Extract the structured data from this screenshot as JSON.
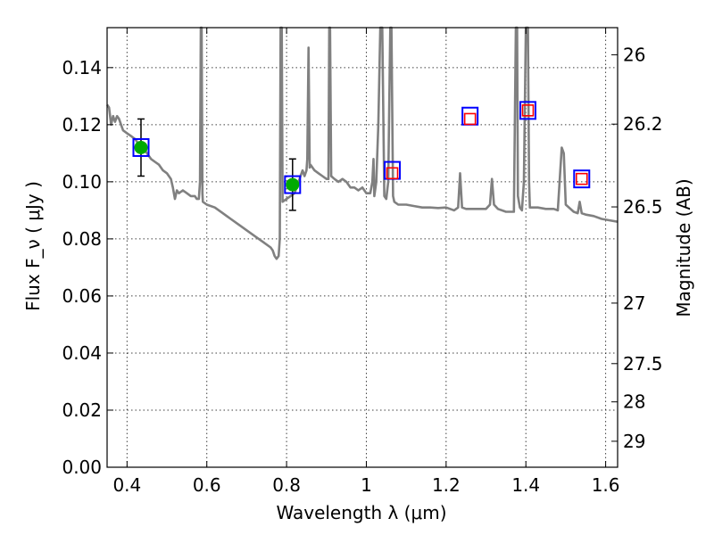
{
  "chart_data": {
    "type": "scatter",
    "title": "",
    "xlabel": "Wavelength  λ (μm)",
    "ylabel": "Flux  F_ν  ( μJy )",
    "y2label": "Magnitude (AB)",
    "xlim": [
      0.35,
      1.63
    ],
    "ylim": [
      0.0,
      0.154
    ],
    "grid": true,
    "x_ticks": [
      0.4,
      0.6,
      0.8,
      1.0,
      1.2,
      1.4,
      1.6
    ],
    "x_tick_labels": [
      "0.4",
      "0.6",
      "0.8",
      "1",
      "1.2",
      "1.4",
      "1.6"
    ],
    "y_ticks": [
      0.0,
      0.02,
      0.04,
      0.06,
      0.08,
      0.1,
      0.12,
      0.14
    ],
    "y_tick_labels": [
      "0.00",
      "0.02",
      "0.04",
      "0.06",
      "0.08",
      "0.10",
      "0.12",
      "0.14"
    ],
    "y2_ticks": [
      {
        "label": "26",
        "flux": 0.1445
      },
      {
        "label": "26.2",
        "flux": 0.1202
      },
      {
        "label": "26.5",
        "flux": 0.0912
      },
      {
        "label": "27",
        "flux": 0.0575
      },
      {
        "label": "27.5",
        "flux": 0.0363
      },
      {
        "label": "28",
        "flux": 0.0229
      },
      {
        "label": "29",
        "flux": 0.0091
      }
    ],
    "series": [
      {
        "kind": "line",
        "color": "#808080",
        "points": [
          [
            0.35,
            0.127
          ],
          [
            0.355,
            0.126
          ],
          [
            0.36,
            0.12
          ],
          [
            0.365,
            0.123
          ],
          [
            0.37,
            0.121
          ],
          [
            0.375,
            0.123
          ],
          [
            0.38,
            0.122
          ],
          [
            0.39,
            0.118
          ],
          [
            0.4,
            0.117
          ],
          [
            0.41,
            0.116
          ],
          [
            0.42,
            0.115
          ],
          [
            0.43,
            0.113
          ],
          [
            0.44,
            0.112
          ],
          [
            0.45,
            0.11
          ],
          [
            0.46,
            0.108
          ],
          [
            0.47,
            0.107
          ],
          [
            0.48,
            0.106
          ],
          [
            0.49,
            0.104
          ],
          [
            0.5,
            0.103
          ],
          [
            0.51,
            0.101
          ],
          [
            0.515,
            0.098
          ],
          [
            0.52,
            0.094
          ],
          [
            0.525,
            0.097
          ],
          [
            0.53,
            0.096
          ],
          [
            0.54,
            0.097
          ],
          [
            0.55,
            0.096
          ],
          [
            0.56,
            0.095
          ],
          [
            0.57,
            0.095
          ],
          [
            0.575,
            0.094
          ],
          [
            0.58,
            0.094
          ],
          [
            0.583,
            0.1
          ],
          [
            0.585,
            0.154
          ],
          [
            0.587,
            0.154
          ],
          [
            0.589,
            0.096
          ],
          [
            0.59,
            0.093
          ],
          [
            0.6,
            0.092
          ],
          [
            0.62,
            0.091
          ],
          [
            0.64,
            0.089
          ],
          [
            0.66,
            0.087
          ],
          [
            0.68,
            0.085
          ],
          [
            0.7,
            0.083
          ],
          [
            0.72,
            0.081
          ],
          [
            0.74,
            0.079
          ],
          [
            0.76,
            0.077
          ],
          [
            0.765,
            0.076
          ],
          [
            0.77,
            0.074
          ],
          [
            0.775,
            0.073
          ],
          [
            0.78,
            0.074
          ],
          [
            0.783,
            0.08
          ],
          [
            0.785,
            0.154
          ],
          [
            0.788,
            0.154
          ],
          [
            0.79,
            0.093
          ],
          [
            0.8,
            0.094
          ],
          [
            0.81,
            0.095
          ],
          [
            0.82,
            0.096
          ],
          [
            0.825,
            0.098
          ],
          [
            0.83,
            0.1
          ],
          [
            0.835,
            0.102
          ],
          [
            0.84,
            0.104
          ],
          [
            0.845,
            0.102
          ],
          [
            0.85,
            0.104
          ],
          [
            0.852,
            0.108
          ],
          [
            0.855,
            0.147
          ],
          [
            0.858,
            0.105
          ],
          [
            0.86,
            0.106
          ],
          [
            0.87,
            0.104
          ],
          [
            0.88,
            0.103
          ],
          [
            0.89,
            0.102
          ],
          [
            0.9,
            0.101
          ],
          [
            0.905,
            0.101
          ],
          [
            0.907,
            0.154
          ],
          [
            0.909,
            0.154
          ],
          [
            0.912,
            0.102
          ],
          [
            0.92,
            0.101
          ],
          [
            0.93,
            0.1
          ],
          [
            0.94,
            0.101
          ],
          [
            0.95,
            0.1
          ],
          [
            0.96,
            0.098
          ],
          [
            0.97,
            0.098
          ],
          [
            0.98,
            0.097
          ],
          [
            0.99,
            0.098
          ],
          [
            1.0,
            0.096
          ],
          [
            1.01,
            0.096
          ],
          [
            1.015,
            0.1
          ],
          [
            1.018,
            0.108
          ],
          [
            1.02,
            0.095
          ],
          [
            1.025,
            0.1
          ],
          [
            1.03,
            0.12
          ],
          [
            1.035,
            0.154
          ],
          [
            1.04,
            0.154
          ],
          [
            1.045,
            0.095
          ],
          [
            1.05,
            0.094
          ],
          [
            1.055,
            0.1
          ],
          [
            1.06,
            0.154
          ],
          [
            1.063,
            0.154
          ],
          [
            1.067,
            0.095
          ],
          [
            1.07,
            0.093
          ],
          [
            1.08,
            0.092
          ],
          [
            1.1,
            0.092
          ],
          [
            1.12,
            0.0915
          ],
          [
            1.14,
            0.091
          ],
          [
            1.16,
            0.091
          ],
          [
            1.18,
            0.0908
          ],
          [
            1.2,
            0.091
          ],
          [
            1.22,
            0.09
          ],
          [
            1.23,
            0.091
          ],
          [
            1.235,
            0.103
          ],
          [
            1.24,
            0.091
          ],
          [
            1.25,
            0.0905
          ],
          [
            1.27,
            0.0905
          ],
          [
            1.29,
            0.0905
          ],
          [
            1.3,
            0.0905
          ],
          [
            1.31,
            0.092
          ],
          [
            1.315,
            0.101
          ],
          [
            1.32,
            0.092
          ],
          [
            1.33,
            0.0905
          ],
          [
            1.35,
            0.0895
          ],
          [
            1.37,
            0.0895
          ],
          [
            1.375,
            0.154
          ],
          [
            1.378,
            0.154
          ],
          [
            1.38,
            0.095
          ],
          [
            1.385,
            0.091
          ],
          [
            1.39,
            0.09
          ],
          [
            1.395,
            0.1
          ],
          [
            1.4,
            0.154
          ],
          [
            1.402,
            0.154
          ],
          [
            1.405,
            0.154
          ],
          [
            1.408,
            0.1
          ],
          [
            1.41,
            0.091
          ],
          [
            1.43,
            0.091
          ],
          [
            1.45,
            0.0905
          ],
          [
            1.47,
            0.0905
          ],
          [
            1.48,
            0.09
          ],
          [
            1.49,
            0.112
          ],
          [
            1.495,
            0.11
          ],
          [
            1.5,
            0.092
          ],
          [
            1.52,
            0.0895
          ],
          [
            1.53,
            0.089
          ],
          [
            1.535,
            0.093
          ],
          [
            1.54,
            0.089
          ],
          [
            1.55,
            0.0885
          ],
          [
            1.57,
            0.088
          ],
          [
            1.59,
            0.087
          ],
          [
            1.61,
            0.0865
          ],
          [
            1.63,
            0.086
          ]
        ]
      },
      {
        "kind": "markers-filled",
        "color": "#00aa00",
        "points": [
          {
            "x": 0.435,
            "y": 0.112,
            "err": 0.01
          },
          {
            "x": 0.815,
            "y": 0.099,
            "err": 0.009
          }
        ]
      },
      {
        "kind": "markers-square-blue",
        "color": "#0000ff",
        "points": [
          {
            "x": 0.435,
            "y": 0.112
          },
          {
            "x": 0.815,
            "y": 0.099
          },
          {
            "x": 1.065,
            "y": 0.104
          },
          {
            "x": 1.26,
            "y": 0.123
          },
          {
            "x": 1.405,
            "y": 0.125
          },
          {
            "x": 1.54,
            "y": 0.101
          }
        ]
      },
      {
        "kind": "markers-square-red",
        "color": "#ff0000",
        "points": [
          {
            "x": 1.065,
            "y": 0.103
          },
          {
            "x": 1.26,
            "y": 0.122
          },
          {
            "x": 1.405,
            "y": 0.125
          },
          {
            "x": 1.54,
            "y": 0.101
          }
        ]
      }
    ]
  }
}
